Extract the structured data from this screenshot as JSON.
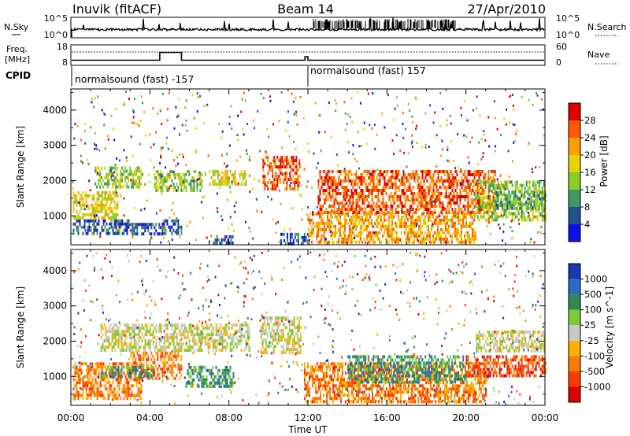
{
  "header": {
    "station": "Inuvik (fitACF)",
    "beam": "Beam 14",
    "date": "27/Apr/2010"
  },
  "noise_panel": {
    "left_label": "N.Sky",
    "right_label": "N.Search",
    "left_ticks": [
      "10^5",
      "10^0"
    ],
    "right_ticks": [
      "10^5",
      "10^0"
    ]
  },
  "freq_panel": {
    "left_label_line1": "Freq.",
    "left_label_line2": "[MHz]",
    "right_label": "Nave",
    "left_ticks": [
      "18",
      "8"
    ],
    "right_ticks": [
      "60",
      "0"
    ],
    "cpid_label": "CPID",
    "cpid_segments": [
      {
        "text": "normalsound (fast) -157",
        "start_hour": 0,
        "end_hour": 12
      },
      {
        "text": "normalsound (fast) 157",
        "start_hour": 12,
        "end_hour": 24
      }
    ]
  },
  "x_axis": {
    "label": "Time UT",
    "tick_labels": [
      "00:00",
      "04:00",
      "08:00",
      "12:00",
      "16:00",
      "20:00",
      "00:00"
    ]
  },
  "chart_data": [
    {
      "type": "heatmap",
      "name": "power",
      "ylabel": "Slant Range [km]",
      "yticks": [
        1000,
        2000,
        3000,
        4000
      ],
      "ylim": [
        180,
        4600
      ],
      "xlim_hours": [
        0,
        24
      ],
      "colorbar": {
        "label": "Power [dB]",
        "ticks": [
          "28",
          "24",
          "20",
          "16",
          "12",
          "8",
          "4"
        ],
        "colors": [
          "#e00000",
          "#ff5a00",
          "#ff9e00",
          "#e6d200",
          "#8ccc2a",
          "#3c9a64",
          "#24508c",
          "#1010e6"
        ]
      },
      "echo_regions": [
        {
          "t0": 0.1,
          "t1": 2.9,
          "r0": 520,
          "r1": 900,
          "level": 6
        },
        {
          "t0": 3.0,
          "t1": 4.6,
          "r0": 450,
          "r1": 800,
          "level": 6
        },
        {
          "t0": 4.6,
          "t1": 5.6,
          "r0": 500,
          "r1": 900,
          "level": 6
        },
        {
          "t0": 7.2,
          "t1": 8.2,
          "r0": 200,
          "r1": 450,
          "level": 6
        },
        {
          "t0": 10.6,
          "t1": 12.1,
          "r0": 200,
          "r1": 520,
          "level": 6
        },
        {
          "t0": 0.1,
          "t1": 2.4,
          "r0": 900,
          "r1": 1700,
          "level": 3
        },
        {
          "t0": 1.2,
          "t1": 3.6,
          "r0": 1800,
          "r1": 2400,
          "level": 4
        },
        {
          "t0": 4.2,
          "t1": 6.6,
          "r0": 1700,
          "r1": 2300,
          "level": 4
        },
        {
          "t0": 7.0,
          "t1": 8.9,
          "r0": 1900,
          "r1": 2300,
          "level": 3
        },
        {
          "t0": 9.7,
          "t1": 11.6,
          "r0": 1800,
          "r1": 2700,
          "level": 1
        },
        {
          "t0": 12.0,
          "t1": 20.5,
          "r0": 220,
          "r1": 1100,
          "level": 2
        },
        {
          "t0": 12.5,
          "t1": 21.5,
          "r0": 1100,
          "r1": 2300,
          "level": 1
        },
        {
          "t0": 20.4,
          "t1": 24.0,
          "r0": 900,
          "r1": 2000,
          "level": 4
        },
        {
          "t0": 21.5,
          "t1": 24.0,
          "r0": 1200,
          "r1": 1700,
          "level": 5
        }
      ]
    },
    {
      "type": "heatmap",
      "name": "velocity",
      "ylabel": "Slant Range [km]",
      "yticks": [
        1000,
        2000,
        3000,
        4000
      ],
      "ylim": [
        180,
        4600
      ],
      "xlim_hours": [
        0,
        24
      ],
      "colorbar": {
        "label": "Velocity [m s^-1]",
        "ticks": [
          "1000",
          "500",
          "100",
          "25",
          "-25",
          "-100",
          "-500",
          "-1000"
        ],
        "colors": [
          "#1838b0",
          "#2e6cc0",
          "#2e8a52",
          "#7ccc3a",
          "#c8c8c8",
          "#ffb000",
          "#ff7a00",
          "#ff3a00",
          "#e00000"
        ]
      },
      "echo_regions": [
        {
          "t0": 0.1,
          "t1": 3.6,
          "r0": 350,
          "r1": 1400,
          "level": 6
        },
        {
          "t0": 3.0,
          "t1": 5.6,
          "r0": 900,
          "r1": 1700,
          "level": 6
        },
        {
          "t0": 1.5,
          "t1": 4.2,
          "r0": 1000,
          "r1": 1300,
          "level": 2
        },
        {
          "t0": 5.8,
          "t1": 8.2,
          "r0": 700,
          "r1": 1300,
          "level": 2
        },
        {
          "t0": 1.5,
          "t1": 9.0,
          "r0": 1700,
          "r1": 2500,
          "level": 4
        },
        {
          "t0": 9.6,
          "t1": 11.6,
          "r0": 1700,
          "r1": 2700,
          "level": 4
        },
        {
          "t0": 11.8,
          "t1": 21.0,
          "r0": 250,
          "r1": 1400,
          "level": 6
        },
        {
          "t0": 14.0,
          "t1": 20.0,
          "r0": 800,
          "r1": 1600,
          "level": 2
        },
        {
          "t0": 20.5,
          "t1": 24.0,
          "r0": 1700,
          "r1": 2300,
          "level": 4
        },
        {
          "t0": 20.0,
          "t1": 24.0,
          "r0": 1000,
          "r1": 1600,
          "level": 7
        }
      ]
    }
  ]
}
